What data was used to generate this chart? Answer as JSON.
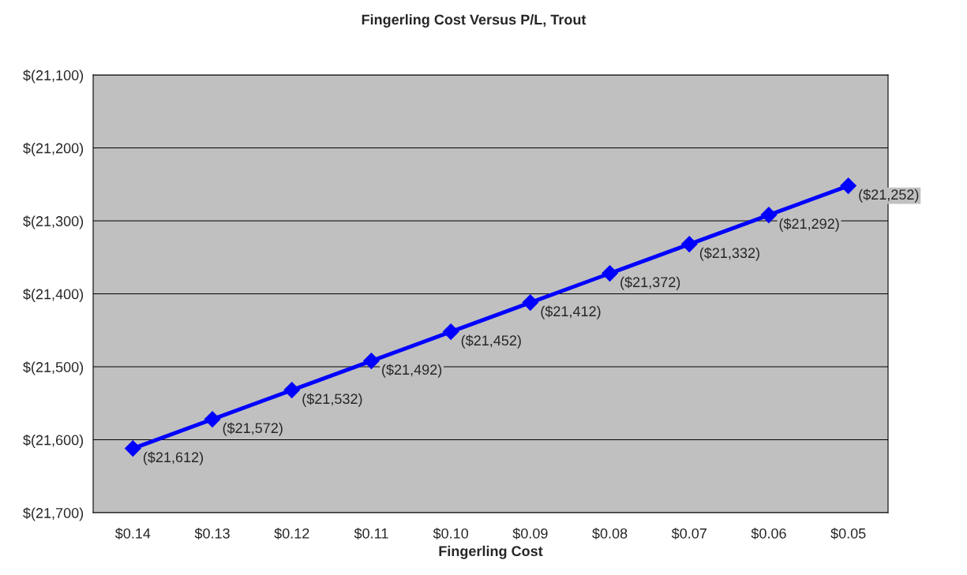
{
  "chart_data": {
    "type": "line",
    "title": "Fingerling Cost Versus P/L, Trout",
    "xlabel": "Fingerling Cost",
    "categories": [
      "$0.14",
      "$0.13",
      "$0.12",
      "$0.11",
      "$0.10",
      "$0.09",
      "$0.08",
      "$0.07",
      "$0.06",
      "$0.05"
    ],
    "series": [
      {
        "color": "#0000ff",
        "values": [
          -21612,
          -21572,
          -21532,
          -21492,
          -21452,
          -21412,
          -21372,
          -21332,
          -21292,
          -21252
        ],
        "value_labels": [
          "($21,612)",
          "($21,572)",
          "($21,532)",
          "($21,492)",
          "($21,452)",
          "($21,412)",
          "($21,372)",
          "($21,332)",
          "($21,292)",
          "($21,252)"
        ]
      }
    ],
    "ylim": [
      -21700,
      -21100
    ],
    "yticks": [
      {
        "value": -21700,
        "label": "$(21,700)"
      },
      {
        "value": -21600,
        "label": "$(21,600)"
      },
      {
        "value": -21500,
        "label": "$(21,500)"
      },
      {
        "value": -21400,
        "label": "$(21,400)"
      },
      {
        "value": -21300,
        "label": "$(21,300)"
      },
      {
        "value": -21200,
        "label": "$(21,200)"
      },
      {
        "value": -21100,
        "label": "$(21,100)"
      }
    ],
    "grid": "y",
    "marker": "diamond",
    "line_style": "solid",
    "legend": false
  }
}
